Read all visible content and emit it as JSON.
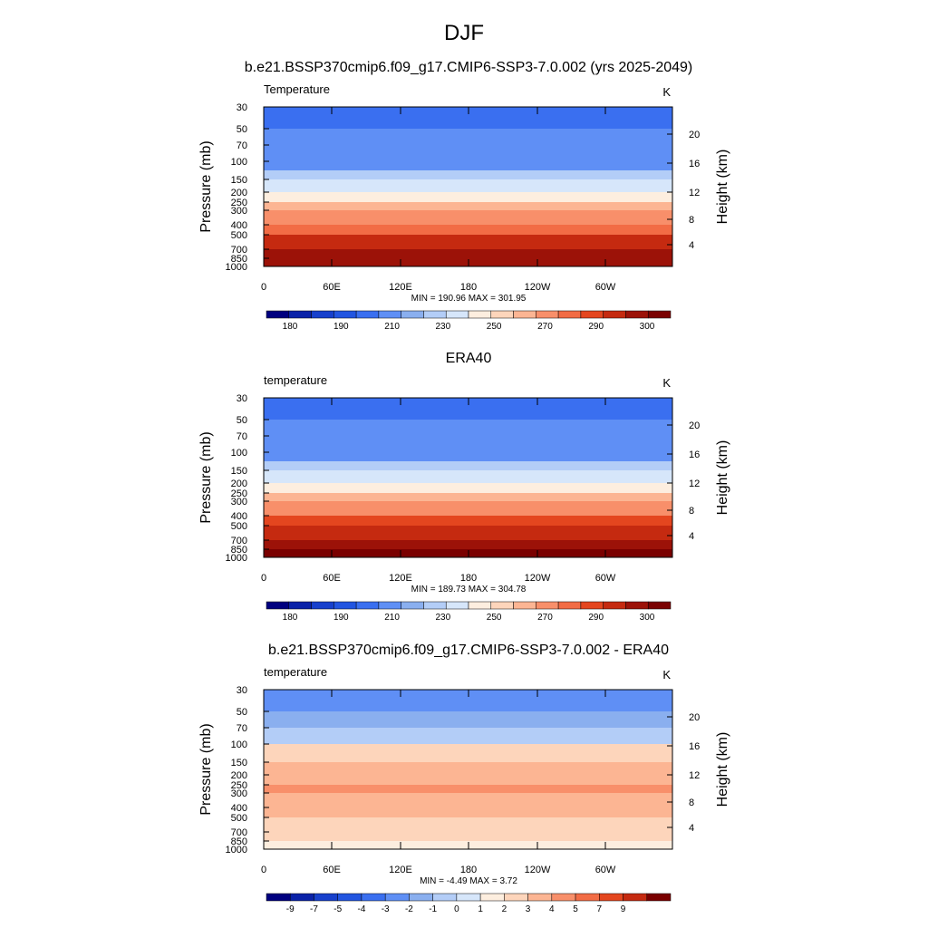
{
  "page": {
    "title": "DJF"
  },
  "chart_data": [
    {
      "type": "heatmap",
      "title": "b.e21.BSSP370cmip6.f09_g17.CMIP6-SSP3-7.0.002 (yrs 2025-2049)",
      "subtitle_left": "Temperature",
      "subtitle_right": "K",
      "ylabel": "Pressure (mb)",
      "ylabel_right": "Height (km)",
      "xticks": [
        "0",
        "60E",
        "120E",
        "180",
        "120W",
        "60W"
      ],
      "yticks": [
        "30",
        "50",
        "70",
        "100",
        "150",
        "200",
        "250",
        "300",
        "400",
        "500",
        "700",
        "850",
        "1000"
      ],
      "yticks_right": [
        "4",
        "8",
        "12",
        "16",
        "20"
      ],
      "stats": "MIN = 190.96  MAX = 301.95",
      "colorbar": {
        "labels": [
          "180",
          "190",
          "210",
          "230",
          "250",
          "270",
          "290",
          "300"
        ],
        "colors": [
          "#00007f",
          "#0a22a8",
          "#1740cc",
          "#2255e0",
          "#3a6ff0",
          "#5f8ff5",
          "#8aafef",
          "#b3cdf7",
          "#d6e6fa",
          "#fdeedf",
          "#fdd5bb",
          "#fcb593",
          "#f88f6a",
          "#f26c45",
          "#e4461f",
          "#c52a10",
          "#9c1208",
          "#7a0000"
        ]
      },
      "values": [
        205,
        205,
        209,
        211,
        214,
        224,
        235,
        245,
        255,
        266,
        276,
        286,
        293,
        298
      ]
    },
    {
      "type": "heatmap",
      "title": "ERA40",
      "subtitle_left": "temperature",
      "subtitle_right": "K",
      "ylabel": "Pressure (mb)",
      "ylabel_right": "Height (km)",
      "xticks": [
        "0",
        "60E",
        "120E",
        "180",
        "120W",
        "60W"
      ],
      "yticks": [
        "30",
        "50",
        "70",
        "100",
        "150",
        "200",
        "250",
        "300",
        "400",
        "500",
        "700",
        "850",
        "1000"
      ],
      "yticks_right": [
        "4",
        "8",
        "12",
        "16",
        "20"
      ],
      "stats": "MIN = 189.73  MAX = 304.78",
      "colorbar": {
        "labels": [
          "180",
          "190",
          "210",
          "230",
          "250",
          "270",
          "290",
          "300"
        ],
        "colors": [
          "#00007f",
          "#0a22a8",
          "#1740cc",
          "#2255e0",
          "#3a6ff0",
          "#5f8ff5",
          "#8aafef",
          "#b3cdf7",
          "#d6e6fa",
          "#fdeedf",
          "#fdd5bb",
          "#fcb593",
          "#f88f6a",
          "#f26c45",
          "#e4461f",
          "#c52a10",
          "#9c1208",
          "#7a0000"
        ]
      },
      "values": [
        207,
        207,
        210,
        212,
        215,
        225,
        236,
        246,
        256,
        267,
        277,
        287,
        294,
        299
      ]
    },
    {
      "type": "heatmap",
      "title": "b.e21.BSSP370cmip6.f09_g17.CMIP6-SSP3-7.0.002 - ERA40",
      "subtitle_left": "temperature",
      "subtitle_right": "K",
      "ylabel": "Pressure (mb)",
      "ylabel_right": "Height (km)",
      "xticks": [
        "0",
        "60E",
        "120E",
        "180",
        "120W",
        "60W"
      ],
      "yticks": [
        "30",
        "50",
        "70",
        "100",
        "150",
        "200",
        "250",
        "300",
        "400",
        "500",
        "700",
        "850",
        "1000"
      ],
      "yticks_right": [
        "4",
        "8",
        "12",
        "16",
        "20"
      ],
      "stats": "MIN =  -4.49  MAX =   3.72",
      "colorbar": {
        "labels": [
          "-9",
          "-7",
          "-5",
          "-4",
          "-3",
          "-2",
          "-1",
          "0",
          "1",
          "2",
          "3",
          "4",
          "5",
          "7",
          "9"
        ],
        "colors": [
          "#00007f",
          "#0a22a8",
          "#1740cc",
          "#2255e0",
          "#3a6ff0",
          "#5f8ff5",
          "#8aafef",
          "#b3cdf7",
          "#d6e6fa",
          "#fdeedf",
          "#fdd5bb",
          "#fcb593",
          "#f88f6a",
          "#f26c45",
          "#e4461f",
          "#c52a10",
          "#7a0000"
        ]
      },
      "values": [
        -4,
        -3.5,
        -2.5,
        -1.5,
        1.2,
        1.8,
        2.2,
        2.5,
        3,
        2.6,
        2.2,
        1.8,
        1.2,
        0.5
      ]
    }
  ]
}
